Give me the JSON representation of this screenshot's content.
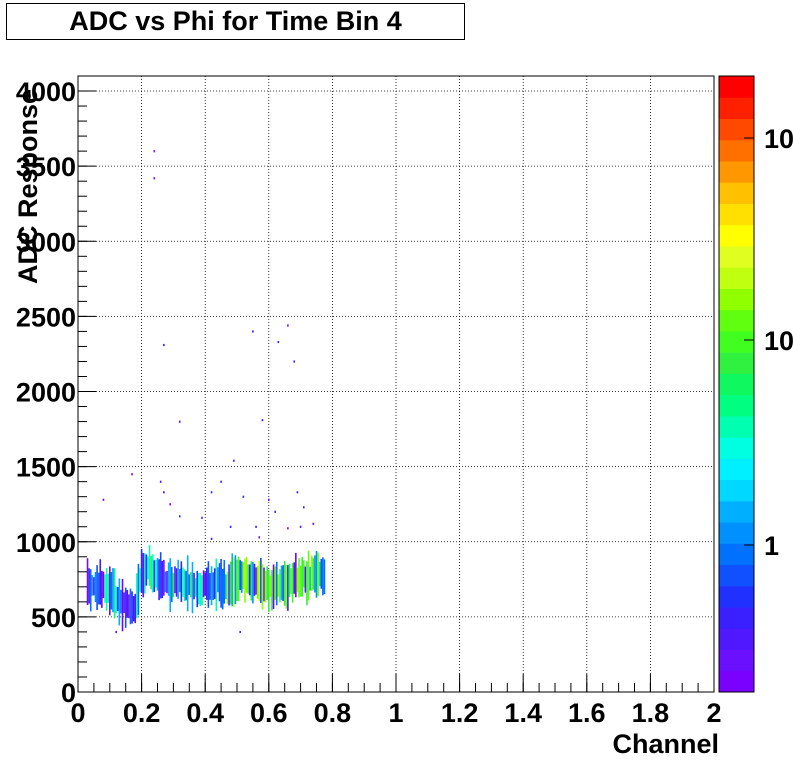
{
  "chart_data": {
    "type": "heatmap",
    "title": "ADC vs Phi for Time Bin 4",
    "xlabel": "Channel",
    "ylabel": "ADC Response",
    "xlim": [
      0,
      2
    ],
    "ylim": [
      0,
      4100
    ],
    "x_ticks": [
      "0",
      "0.2",
      "0.4",
      "0.6",
      "0.8",
      "1",
      "1.2",
      "1.4",
      "1.6",
      "1.8",
      "2"
    ],
    "y_ticks": [
      "0",
      "500",
      "1000",
      "1500",
      "2000",
      "2500",
      "3000",
      "3500",
      "4000"
    ],
    "grid": true,
    "color_scale": "log",
    "palette_labels": [
      "1",
      "10",
      "10"
    ],
    "main_band": {
      "x_range": [
        0.03,
        0.78
      ],
      "centers": [
        [
          0.03,
          730
        ],
        [
          0.06,
          700
        ],
        [
          0.09,
          700
        ],
        [
          0.12,
          640
        ],
        [
          0.15,
          580
        ],
        [
          0.18,
          560
        ],
        [
          0.2,
          830
        ],
        [
          0.23,
          820
        ],
        [
          0.26,
          760
        ],
        [
          0.29,
          730
        ],
        [
          0.32,
          740
        ],
        [
          0.35,
          720
        ],
        [
          0.38,
          700
        ],
        [
          0.41,
          720
        ],
        [
          0.44,
          740
        ],
        [
          0.47,
          700
        ],
        [
          0.5,
          760
        ],
        [
          0.53,
          790
        ],
        [
          0.56,
          740
        ],
        [
          0.59,
          720
        ],
        [
          0.62,
          720
        ],
        [
          0.65,
          720
        ],
        [
          0.68,
          750
        ],
        [
          0.71,
          770
        ],
        [
          0.74,
          780
        ],
        [
          0.77,
          770
        ]
      ]
    },
    "outliers": [
      [
        0.24,
        3600
      ],
      [
        0.24,
        3420
      ],
      [
        0.27,
        2310
      ],
      [
        0.55,
        2400
      ],
      [
        0.66,
        2440
      ],
      [
        0.63,
        2330
      ],
      [
        0.68,
        2200
      ],
      [
        0.58,
        1810
      ],
      [
        0.32,
        1800
      ],
      [
        0.49,
        1540
      ],
      [
        0.17,
        1450
      ],
      [
        0.26,
        1400
      ],
      [
        0.29,
        1250
      ],
      [
        0.42,
        1330
      ],
      [
        0.52,
        1300
      ],
      [
        0.6,
        1280
      ],
      [
        0.27,
        1330
      ],
      [
        0.08,
        1280
      ],
      [
        0.69,
        1330
      ],
      [
        0.71,
        1230
      ],
      [
        0.32,
        1170
      ],
      [
        0.39,
        1160
      ],
      [
        0.48,
        1100
      ],
      [
        0.56,
        1100
      ],
      [
        0.66,
        1090
      ],
      [
        0.7,
        1100
      ],
      [
        0.74,
        1120
      ],
      [
        0.57,
        1030
      ],
      [
        0.51,
        400
      ],
      [
        0.12,
        400
      ],
      [
        0.42,
        1020
      ],
      [
        0.62,
        1200
      ],
      [
        0.45,
        1400
      ]
    ]
  }
}
